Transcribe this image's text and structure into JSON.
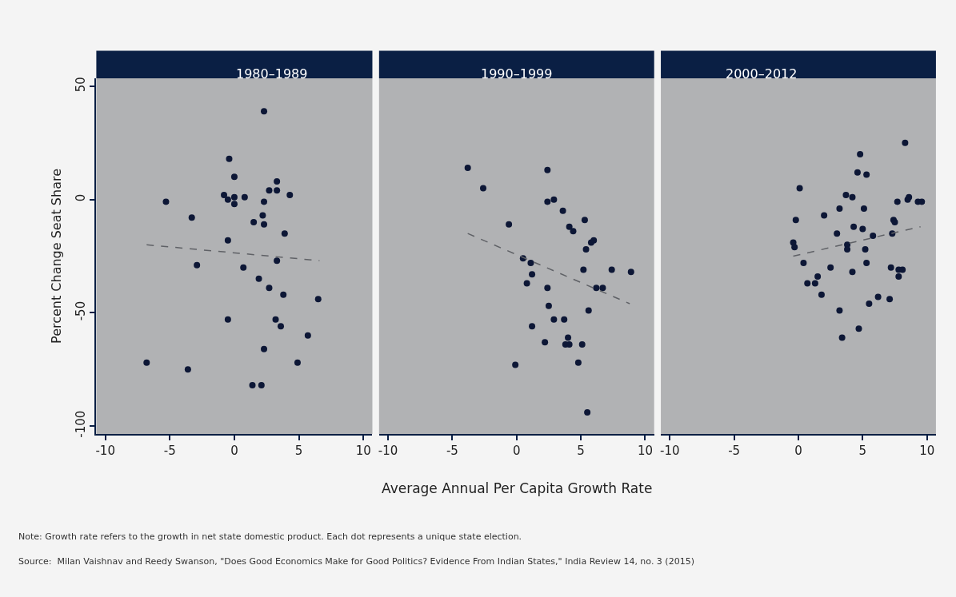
{
  "chart_data": [
    {
      "type": "scatter",
      "title": "1980–1989",
      "ylabel": "Percent Change Seat Share",
      "xlim": [
        -10.7,
        10.7
      ],
      "xticks": [
        -10,
        -5,
        0,
        5,
        10
      ],
      "ylim": [
        -103.5,
        53.5
      ],
      "yticks": [
        -100,
        -50,
        0,
        50
      ],
      "grid": false,
      "marker": "circle",
      "annotations": [
        "Note: Growth rate refers to the growth in net state domestic product. Each dot represents a unique state election.",
        "Source:  Milan Vaishnav and Reedy Swanson, \"Does Good Economics Make for Good Politics? Evidence From Indian States,\" India Review 14, no. 3 (2015)"
      ],
      "series": [
        {
          "color": "#0d1736",
          "x": [
            2.3,
            -0.4,
            0.0,
            3.3,
            2.7,
            3.3,
            4.3,
            -0.8,
            -0.5,
            0.0,
            0.0,
            0.8,
            2.3,
            -5.3,
            -3.3,
            2.2,
            1.5,
            2.3,
            3.9,
            -0.5,
            -2.9,
            3.3,
            0.7,
            1.9,
            2.7,
            3.8,
            6.5,
            -0.5,
            3.2,
            3.6,
            5.7,
            2.3,
            -6.8,
            4.9,
            -3.6,
            1.4,
            2.1
          ],
          "values": [
            39,
            18,
            10,
            8,
            4,
            4,
            2,
            2,
            0,
            1,
            -2,
            1,
            -1,
            -1,
            -8,
            -7,
            -10,
            -11,
            -15,
            -18,
            -29,
            -27,
            -30,
            -35,
            -39,
            -42,
            -44,
            -53,
            -53,
            -56,
            -60,
            -66,
            -72,
            -72,
            -75,
            -82,
            -82
          ]
        },
        {
          "type": "line",
          "color": "#5f6166",
          "line_style": "dashed",
          "marker": "none",
          "x": [
            -6.8,
            6.6
          ],
          "values": [
            -20,
            -27
          ]
        }
      ]
    },
    {
      "type": "scatter",
      "title": "1990–1999",
      "xlabel": "Average Annual Per Capita Growth Rate",
      "xlim": [
        -10.7,
        10.7
      ],
      "xticks": [
        -10,
        -5,
        0,
        5,
        10
      ],
      "ylim": [
        -103.5,
        53.5
      ],
      "yticks": [
        -100,
        -50,
        0,
        50
      ],
      "tick_labels": "x",
      "grid": false,
      "marker": "circle",
      "series": [
        {
          "color": "#0d1736",
          "x": [
            -3.8,
            2.4,
            -2.6,
            2.4,
            2.9,
            3.6,
            -0.6,
            5.3,
            4.1,
            4.4,
            6.0,
            5.8,
            5.4,
            0.5,
            1.1,
            1.2,
            5.2,
            7.4,
            8.9,
            0.8,
            2.4,
            6.2,
            6.7,
            2.5,
            5.6,
            2.9,
            3.7,
            1.2,
            2.2,
            4.0,
            3.8,
            4.1,
            5.1,
            4.8,
            -0.1,
            5.5
          ],
          "values": [
            14,
            13,
            5,
            -1,
            0,
            -5,
            -11,
            -9,
            -12,
            -14,
            -18,
            -19,
            -22,
            -26,
            -28,
            -33,
            -31,
            -31,
            -32,
            -37,
            -39,
            -39,
            -39,
            -47,
            -49,
            -53,
            -53,
            -56,
            -63,
            -61,
            -64,
            -64,
            -64,
            -72,
            -73,
            -94
          ]
        },
        {
          "type": "line",
          "color": "#5f6166",
          "line_style": "dashed",
          "marker": "none",
          "x": [
            -3.8,
            8.8
          ],
          "values": [
            -15,
            -46
          ]
        }
      ]
    },
    {
      "type": "scatter",
      "title": "2000–2012",
      "xlim": [
        -10.7,
        10.7
      ],
      "xticks": [
        -10,
        -5,
        0,
        5,
        10
      ],
      "ylim": [
        -103.5,
        53.5
      ],
      "yticks": [
        -100,
        -50,
        0,
        50
      ],
      "tick_labels": "x",
      "grid": false,
      "marker": "circle",
      "series": [
        {
          "color": "#0d1736",
          "x": [
            8.3,
            4.8,
            4.6,
            5.3,
            0.1,
            3.7,
            4.2,
            8.6,
            8.5,
            9.3,
            9.6,
            7.7,
            3.2,
            5.1,
            -0.2,
            2.0,
            7.4,
            7.5,
            4.3,
            5.0,
            3.0,
            7.3,
            5.8,
            -0.4,
            -0.3,
            3.8,
            3.8,
            5.2,
            0.4,
            5.3,
            2.5,
            4.2,
            7.2,
            7.8,
            8.1,
            1.5,
            7.8,
            0.7,
            1.3,
            1.8,
            6.2,
            7.1,
            5.5,
            3.2,
            4.7,
            3.4
          ],
          "values": [
            25,
            20,
            12,
            11,
            5,
            2,
            1,
            1,
            0,
            -1,
            -1,
            -1,
            -4,
            -4,
            -9,
            -7,
            -9,
            -10,
            -12,
            -13,
            -15,
            -15,
            -16,
            -19,
            -21,
            -20,
            -22,
            -22,
            -28,
            -28,
            -30,
            -32,
            -30,
            -31,
            -31,
            -34,
            -34,
            -37,
            -37,
            -42,
            -43,
            -44,
            -46,
            -49,
            -57,
            -61
          ]
        },
        {
          "type": "line",
          "color": "#5f6166",
          "line_style": "dashed",
          "marker": "none",
          "x": [
            -0.4,
            9.5
          ],
          "values": [
            -25,
            -12
          ]
        }
      ]
    }
  ]
}
